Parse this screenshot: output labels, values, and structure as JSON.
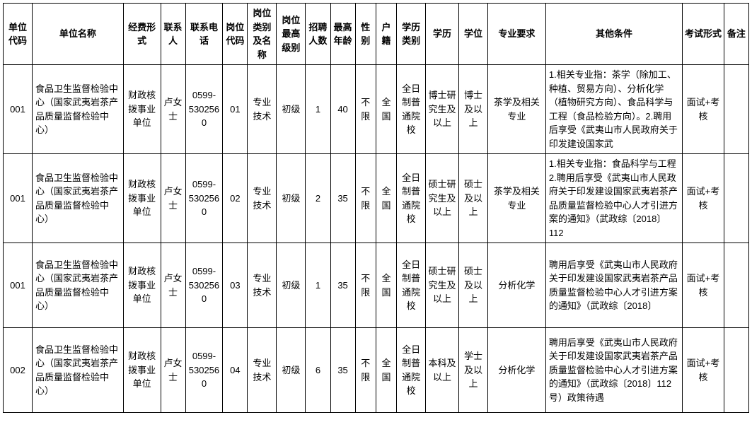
{
  "table": {
    "columns": [
      "单位代码",
      "单位名称",
      "经费形式",
      "联系人",
      "联系电话",
      "岗位代码",
      "岗位类别及名称",
      "岗位最高级别",
      "招聘人数",
      "最高年龄",
      "性别",
      "户籍",
      "学历类别",
      "学历",
      "学位",
      "专业要求",
      "其他条件",
      "考试形式",
      "备注"
    ],
    "rows": [
      {
        "c0": "001",
        "c1": "食品卫生监督检验中心（国家武夷岩茶产品质量监督检验中心）",
        "c2": "财政核拨事业单位",
        "c3": "卢女士",
        "c4": "0599-5302560",
        "c5": "01",
        "c6": "专业技术",
        "c7": "初级",
        "c8": "1",
        "c9": "40",
        "c10": "不限",
        "c11": "全国",
        "c12": "全日制普通院校",
        "c13": "博士研究生及以上",
        "c14": "博士及以上",
        "c15": "茶学及相关专业",
        "c16": "1.相关专业指：茶学（除加工、种植、贸易方向）、分析化学（植物研究方向）、食品科学与工程（食品检验方向）。2.聘用后享受《武夷山市人民政府关于印发建设国家武",
        "c17": "面试+考核",
        "c18": ""
      },
      {
        "c0": "001",
        "c1": "食品卫生监督检验中心（国家武夷岩茶产品质量监督检验中心）",
        "c2": "财政核拨事业单位",
        "c3": "卢女士",
        "c4": "0599-5302560",
        "c5": "02",
        "c6": "专业技术",
        "c7": "初级",
        "c8": "2",
        "c9": "35",
        "c10": "不限",
        "c11": "全国",
        "c12": "全日制普通院校",
        "c13": "硕士研究生及以上",
        "c14": "硕士及以上",
        "c15": "茶学及相关专业",
        "c16": "1.相关专业指：食品科学与工程　　　　　2.聘用后享受《武夷山市人民政府关于印发建设国家武夷岩茶产品质量监督检验中心人才引进方案的通知》（武政综〔2018〕112",
        "c17": "面试+考核",
        "c18": ""
      },
      {
        "c0": "001",
        "c1": "食品卫生监督检验中心（国家武夷岩茶产品质量监督检验中心）",
        "c2": "财政核拨事业单位",
        "c3": "卢女士",
        "c4": "0599-5302560",
        "c5": "03",
        "c6": "专业技术",
        "c7": "初级",
        "c8": "1",
        "c9": "35",
        "c10": "不限",
        "c11": "全国",
        "c12": "全日制普通院校",
        "c13": "硕士研究生及以上",
        "c14": "硕士及以上",
        "c15": "分析化学",
        "c16": "聘用后享受《武夷山市人民政府关于印发建设国家武夷岩茶产品质量监督检验中心人才引进方案的通知》（武政综〔2018〕",
        "c17": "面试+考核",
        "c18": ""
      },
      {
        "c0": "002",
        "c1": "食品卫生监督检验中心（国家武夷岩茶产品质量监督检验中心）",
        "c2": "财政核拨事业单位",
        "c3": "卢女士",
        "c4": "0599-5302560",
        "c5": "04",
        "c6": "专业技术",
        "c7": "初级",
        "c8": "6",
        "c9": "35",
        "c10": "不限",
        "c11": "全国",
        "c12": "全日制普通院校",
        "c13": "本科及以上",
        "c14": "学士及以上",
        "c15": "分析化学",
        "c16": "聘用后享受《武夷山市人民政府关于印发建设国家武夷岩茶产品质量监督检验中心人才引进方案的通知》（武政综〔2018〕112号）政策待遇",
        "c17": "面试+考核",
        "c18": ""
      }
    ],
    "border_color": "#000000",
    "background_color": "#ffffff",
    "font_size": 13,
    "header_font_weight": "bold"
  }
}
